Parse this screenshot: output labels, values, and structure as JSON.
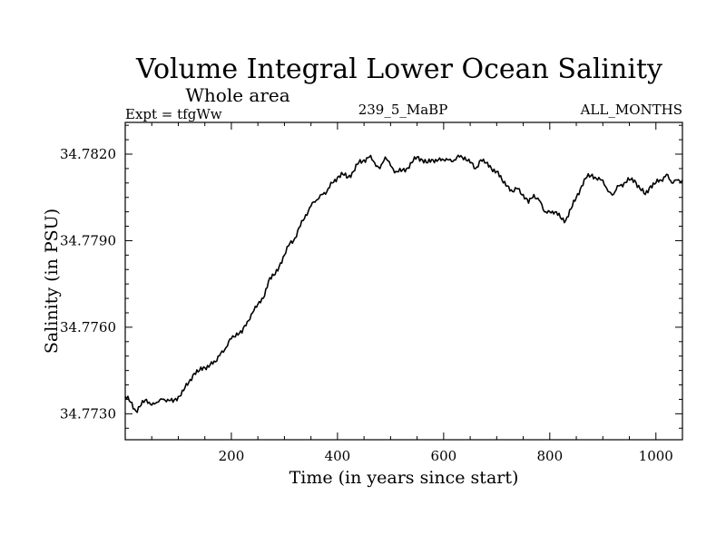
{
  "chart_data": {
    "type": "line",
    "title": "Volume Integral Lower Ocean Salinity",
    "subtitle": "Whole area",
    "left_label": "Expt = tfgWw",
    "center_label": "239_5_MaBP",
    "right_label": "ALL_MONTHS",
    "xlabel": "Time (in years since start)",
    "ylabel": "Salinity (in PSU)",
    "xlim": [
      0,
      1050
    ],
    "ylim": [
      34.7721,
      34.7831
    ],
    "xticks": [
      200,
      400,
      600,
      800,
      1000
    ],
    "xtick_labels": [
      "200",
      "400",
      "600",
      "800",
      "1000"
    ],
    "yticks": [
      34.773,
      34.776,
      34.779,
      34.782
    ],
    "ytick_labels": [
      "34.7730",
      "34.7760",
      "34.7790",
      "34.7820"
    ],
    "grid": false,
    "legend": "none",
    "line_color": "#000000",
    "series": [
      {
        "name": "Salinity",
        "x": [
          0,
          10,
          20,
          30,
          40,
          50,
          60,
          70,
          80,
          90,
          100,
          110,
          120,
          130,
          140,
          150,
          160,
          170,
          180,
          190,
          200,
          210,
          220,
          230,
          240,
          250,
          260,
          270,
          280,
          290,
          300,
          310,
          320,
          330,
          340,
          350,
          360,
          370,
          380,
          390,
          400,
          410,
          420,
          430,
          440,
          450,
          460,
          470,
          480,
          490,
          500,
          510,
          520,
          530,
          540,
          550,
          560,
          570,
          580,
          590,
          600,
          610,
          620,
          630,
          640,
          650,
          660,
          670,
          680,
          690,
          700,
          710,
          720,
          730,
          740,
          750,
          760,
          770,
          780,
          790,
          800,
          810,
          820,
          830,
          840,
          850,
          860,
          870,
          880,
          890,
          900,
          910,
          920,
          930,
          940,
          950,
          960,
          970,
          980,
          990,
          1000,
          1010,
          1020,
          1030,
          1040,
          1050
        ],
        "values": [
          34.7736,
          34.7734,
          34.7731,
          34.7733,
          34.7735,
          34.7733,
          34.7734,
          34.7735,
          34.7735,
          34.7734,
          34.7736,
          34.7738,
          34.7741,
          34.7744,
          34.7745,
          34.7746,
          34.7747,
          34.7748,
          34.7751,
          34.7753,
          34.7756,
          34.7758,
          34.7758,
          34.7762,
          34.7765,
          34.7768,
          34.777,
          34.7776,
          34.7778,
          34.7781,
          34.7785,
          34.7789,
          34.7791,
          34.7795,
          34.7799,
          34.7802,
          34.7804,
          34.7806,
          34.7807,
          34.781,
          34.7812,
          34.7813,
          34.7812,
          34.7814,
          34.7817,
          34.7818,
          34.7819,
          34.7817,
          34.7815,
          34.7819,
          34.7816,
          34.7814,
          34.7814,
          34.7815,
          34.7817,
          34.7819,
          34.7818,
          34.7817,
          34.7818,
          34.7818,
          34.7818,
          34.7818,
          34.7818,
          34.7819,
          34.7819,
          34.7817,
          34.7815,
          34.7818,
          34.7817,
          34.7815,
          34.7814,
          34.7811,
          34.7809,
          34.7807,
          34.7808,
          34.7806,
          34.7803,
          34.7806,
          34.7804,
          34.78,
          34.78,
          34.78,
          34.7798,
          34.7797,
          34.7801,
          34.7805,
          34.7809,
          34.7812,
          34.7813,
          34.7811,
          34.7811,
          34.7807,
          34.7806,
          34.7809,
          34.781,
          34.7811,
          34.7811,
          34.7808,
          34.7806,
          34.7809,
          34.781,
          34.7811,
          34.7813,
          34.781,
          34.7811,
          34.7811
        ]
      }
    ]
  }
}
